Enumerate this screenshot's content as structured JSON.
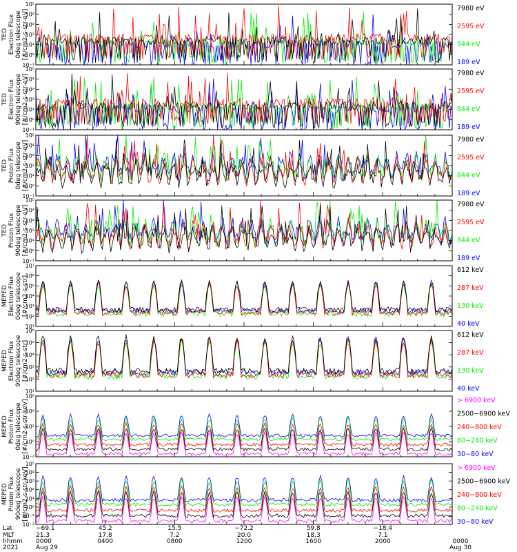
{
  "colors": {
    "black": "#000000",
    "red": "#ff0000",
    "green": "#00ee00",
    "blue": "#0000ff",
    "magenta": "#ff00ff"
  },
  "chart_data": [
    {
      "type": "line",
      "ylabel": [
        "TED",
        "Electron Flux",
        "0deg telescope",
        "[#/cm2-s-str-eV]"
      ],
      "ylim_exp": [
        -1,
        5
      ],
      "tick_labels": [
        "10⁻¹",
        "10⁰",
        "10¹",
        "10²",
        "10³",
        "10⁴",
        "10⁵"
      ],
      "series": [
        {
          "name": "7980 eV",
          "color": "black"
        },
        {
          "name": "2595 eV",
          "color": "red"
        },
        {
          "name": "844 eV",
          "color": "green"
        },
        {
          "name": "189 eV",
          "color": "blue"
        }
      ],
      "pattern": "spiky",
      "base": [
        1.0,
        1.3,
        0.9,
        0.7
      ]
    },
    {
      "type": "line",
      "ylabel": [
        "TED",
        "Electron Flux",
        "90deg telescope",
        "[#/cm2-s-str-eV]"
      ],
      "ylim_exp": [
        -1,
        5
      ],
      "tick_labels": [
        "10⁻¹",
        "10⁰",
        "10¹",
        "10²",
        "10³",
        "10⁴",
        "10⁵"
      ],
      "series": [
        {
          "name": "7980 eV",
          "color": "black"
        },
        {
          "name": "2595 eV",
          "color": "red"
        },
        {
          "name": "844 eV",
          "color": "green"
        },
        {
          "name": "189 eV",
          "color": "blue"
        }
      ],
      "pattern": "spiky",
      "base": [
        1.0,
        1.3,
        0.9,
        0.7
      ]
    },
    {
      "type": "line",
      "ylabel": [
        "TED",
        "Proton Flux",
        "0deg telescope",
        "[#/cm2-s-str-eV]"
      ],
      "ylim_exp": [
        -1,
        5
      ],
      "tick_labels": [
        "10⁻¹",
        "10⁰",
        "10¹",
        "10²",
        "10³",
        "10⁴",
        "10⁵"
      ],
      "series": [
        {
          "name": "7980 eV",
          "color": "black"
        },
        {
          "name": "2595 eV",
          "color": "red"
        },
        {
          "name": "844 eV",
          "color": "green"
        },
        {
          "name": "189 eV",
          "color": "blue"
        }
      ],
      "pattern": "dense",
      "base": [
        1.2,
        1.5,
        1.8,
        2.0
      ]
    },
    {
      "type": "line",
      "ylabel": [
        "TED",
        "Proton Flux",
        "90deg telescope",
        "[#/cm2-s-str-eV]"
      ],
      "ylim_exp": [
        -1,
        5
      ],
      "tick_labels": [
        "10⁻¹",
        "10⁰",
        "10¹",
        "10²",
        "10³",
        "10⁴",
        "10⁵"
      ],
      "series": [
        {
          "name": "7980 eV",
          "color": "black"
        },
        {
          "name": "2595 eV",
          "color": "red"
        },
        {
          "name": "844 eV",
          "color": "green"
        },
        {
          "name": "189 eV",
          "color": "blue"
        }
      ],
      "pattern": "dense",
      "base": [
        1.2,
        1.5,
        1.8,
        2.0
      ]
    },
    {
      "type": "line",
      "ylabel": [
        "MEPED",
        "Electron Flux",
        "0deg telescope",
        "[#/cm2-s-str]"
      ],
      "ylim_exp": [
        1,
        7
      ],
      "tick_labels": [
        "10¹",
        "10²",
        "10³",
        "10⁴",
        "10⁵",
        "10⁶",
        "10⁷"
      ],
      "series": [
        {
          "name": "612 keV",
          "color": "black"
        },
        {
          "name": "287 keV",
          "color": "red"
        },
        {
          "name": "130 keV",
          "color": "green"
        },
        {
          "name": "40 keV",
          "color": "blue"
        }
      ],
      "pattern": "meped_e",
      "base": [
        2.4,
        2.1,
        2.0,
        2.3
      ]
    },
    {
      "type": "line",
      "ylabel": [
        "MEPED",
        "Electron Flux",
        "90deg telescope",
        "[#/cm2-s-str]"
      ],
      "ylim_exp": [
        1,
        6
      ],
      "tick_labels": [
        "10¹",
        "10²",
        "10³",
        "10⁴",
        "10⁵",
        "10⁶"
      ],
      "series": [
        {
          "name": "612 keV",
          "color": "black"
        },
        {
          "name": "287 keV",
          "color": "red"
        },
        {
          "name": "130 keV",
          "color": "green"
        },
        {
          "name": "40 keV",
          "color": "blue"
        }
      ],
      "pattern": "meped_e",
      "base": [
        2.4,
        2.1,
        2.0,
        2.3
      ]
    },
    {
      "type": "line",
      "ylabel": [
        "MEPED",
        "Proton Flux",
        "0deg telescope",
        "[#/cm2-s-str-keV]"
      ],
      "ylim_exp": [
        -2,
        6
      ],
      "tick_labels": [
        "10⁻²",
        "10⁰",
        "10²",
        "10⁴",
        "10⁶"
      ],
      "series": [
        {
          "name": "> 6900 keV",
          "color": "magenta"
        },
        {
          "name": "2500−6900 keV",
          "color": "black"
        },
        {
          "name": "240−800 keV",
          "color": "red"
        },
        {
          "name": "80−240 keV",
          "color": "green"
        },
        {
          "name": "30−80 keV",
          "color": "blue"
        }
      ],
      "pattern": "meped_p",
      "base": [
        -1.8,
        -1.2,
        -0.6,
        0.1,
        0.6
      ]
    },
    {
      "type": "line",
      "ylabel": [
        "MEPED",
        "Proton Flux",
        "90deg telescope",
        "[#/cm2-s-str-keV]"
      ],
      "ylim_exp": [
        -2,
        5
      ],
      "tick_labels": [
        "10⁻²",
        "10⁻¹",
        "10⁰",
        "10¹",
        "10²",
        "10³",
        "10⁴",
        "10⁵"
      ],
      "series": [
        {
          "name": "> 6900 keV",
          "color": "magenta"
        },
        {
          "name": "2500−6900 keV",
          "color": "black"
        },
        {
          "name": "240−800 keV",
          "color": "red"
        },
        {
          "name": "80−240 keV",
          "color": "green"
        },
        {
          "name": "30−80 keV",
          "color": "blue"
        }
      ],
      "pattern": "meped_p",
      "base": [
        -1.8,
        -1.2,
        -0.6,
        0.1,
        0.6
      ]
    }
  ],
  "footer": {
    "row_labels": [
      "Lat",
      "MLT",
      "hhmm",
      "2021"
    ],
    "columns": [
      {
        "lat": "−69.1",
        "mlt": "21.3",
        "hhmm": "0000",
        "date": "Aug 29"
      },
      {
        "lat": "45.2",
        "mlt": "17.8",
        "hhmm": "0400",
        "date": ""
      },
      {
        "lat": "15.5",
        "mlt": "7.2",
        "hhmm": "0800",
        "date": ""
      },
      {
        "lat": "−72.2",
        "mlt": "20.0",
        "hhmm": "1200",
        "date": ""
      },
      {
        "lat": "59.8",
        "mlt": "18.3",
        "hhmm": "1600",
        "date": ""
      },
      {
        "lat": "−18.4",
        "mlt": "7.1",
        "hhmm": "2000",
        "date": ""
      },
      {
        "lat": "",
        "mlt": "",
        "hhmm": "0000",
        "date": "Aug 30"
      }
    ]
  }
}
